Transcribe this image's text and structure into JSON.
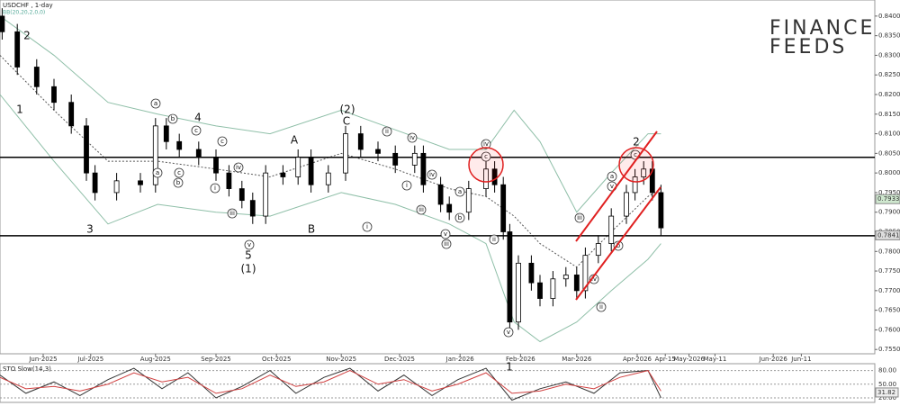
{
  "logo": {
    "line1": "FINANCE",
    "line2": "FEEDS"
  },
  "chart_data": {
    "type": "candlestick",
    "title": "USDCHF , 1-day",
    "indicator_label": "BB(20,20,2,0,0)",
    "up_color": "#ffffff",
    "down_color": "#000000",
    "wick_color": "#000000",
    "x": [
      1,
      8,
      17,
      25,
      33,
      40,
      44,
      54,
      65,
      72,
      77,
      83,
      92,
      100,
      106,
      112,
      117,
      123,
      131,
      138,
      144,
      152,
      160,
      167,
      175,
      183,
      192,
      196,
      204,
      208,
      217,
      225,
      229,
      233,
      236,
      240,
      246,
      250,
      256,
      262,
      267,
      271,
      277,
      283,
      290,
      294,
      298,
      302,
      306
    ],
    "open": [
      0.84,
      0.836,
      0.827,
      0.822,
      0.818,
      0.812,
      0.8,
      0.795,
      0.798,
      0.797,
      0.812,
      0.808,
      0.806,
      0.804,
      0.8,
      0.796,
      0.793,
      0.789,
      0.8,
      0.799,
      0.804,
      0.797,
      0.8,
      0.81,
      0.806,
      0.805,
      0.802,
      0.805,
      0.797,
      0.792,
      0.79,
      0.796,
      0.801,
      0.797,
      0.785,
      0.762,
      0.777,
      0.772,
      0.768,
      0.773,
      0.774,
      0.77,
      0.779,
      0.782,
      0.789,
      0.795,
      0.799,
      0.801,
      0.795
    ],
    "high": [
      0.842,
      0.838,
      0.829,
      0.824,
      0.82,
      0.814,
      0.802,
      0.8,
      0.8,
      0.814,
      0.814,
      0.81,
      0.808,
      0.806,
      0.802,
      0.798,
      0.795,
      0.802,
      0.802,
      0.806,
      0.806,
      0.802,
      0.812,
      0.812,
      0.808,
      0.807,
      0.807,
      0.807,
      0.799,
      0.794,
      0.798,
      0.803,
      0.803,
      0.799,
      0.787,
      0.779,
      0.779,
      0.774,
      0.775,
      0.776,
      0.776,
      0.781,
      0.784,
      0.791,
      0.797,
      0.801,
      0.803,
      0.803,
      0.797
    ],
    "low": [
      0.834,
      0.825,
      0.82,
      0.816,
      0.81,
      0.798,
      0.793,
      0.793,
      0.795,
      0.795,
      0.806,
      0.804,
      0.802,
      0.798,
      0.794,
      0.791,
      0.787,
      0.787,
      0.797,
      0.797,
      0.795,
      0.795,
      0.798,
      0.804,
      0.803,
      0.8,
      0.8,
      0.795,
      0.79,
      0.788,
      0.788,
      0.794,
      0.795,
      0.783,
      0.76,
      0.76,
      0.77,
      0.766,
      0.766,
      0.771,
      0.768,
      0.768,
      0.777,
      0.78,
      0.787,
      0.793,
      0.797,
      0.793,
      0.784
    ],
    "close": [
      0.836,
      0.827,
      0.822,
      0.818,
      0.812,
      0.8,
      0.795,
      0.798,
      0.797,
      0.812,
      0.808,
      0.806,
      0.804,
      0.8,
      0.796,
      0.793,
      0.789,
      0.8,
      0.799,
      0.804,
      0.797,
      0.8,
      0.81,
      0.806,
      0.805,
      0.802,
      0.805,
      0.797,
      0.792,
      0.79,
      0.796,
      0.801,
      0.797,
      0.785,
      0.762,
      0.777,
      0.772,
      0.768,
      0.773,
      0.774,
      0.77,
      0.779,
      0.782,
      0.789,
      0.795,
      0.799,
      0.801,
      0.795,
      0.786
    ],
    "bands": {
      "color": "#8fbfa8",
      "middle_color": "#555555",
      "x": [
        0,
        25,
        50,
        73,
        100,
        125,
        158,
        183,
        208,
        225,
        238,
        250,
        267,
        283,
        300,
        306
      ],
      "upper": [
        0.84,
        0.83,
        0.818,
        0.815,
        0.812,
        0.81,
        0.816,
        0.811,
        0.806,
        0.806,
        0.816,
        0.808,
        0.79,
        0.8,
        0.81,
        0.81
      ],
      "middle": [
        0.83,
        0.816,
        0.803,
        0.803,
        0.801,
        0.799,
        0.805,
        0.801,
        0.796,
        0.794,
        0.789,
        0.782,
        0.776,
        0.785,
        0.794,
        0.796
      ],
      "lower": [
        0.82,
        0.803,
        0.787,
        0.792,
        0.79,
        0.789,
        0.795,
        0.792,
        0.787,
        0.782,
        0.762,
        0.757,
        0.762,
        0.77,
        0.778,
        0.782
      ]
    },
    "levels": [
      0.804,
      0.784
    ],
    "price_labels": [
      {
        "value": 0.79333,
        "label": "0.79333"
      },
      {
        "value": 0.78411,
        "label": "0.78411"
      }
    ],
    "xlim": [
      0,
      405
    ],
    "ylim": [
      0.7539,
      0.8441
    ],
    "yticks": [
      {
        "value": 0.755,
        "label": "0.75500"
      },
      {
        "value": 0.76,
        "label": "0.76000"
      },
      {
        "value": 0.765,
        "label": "0.76500"
      },
      {
        "value": 0.77,
        "label": "0.77000"
      },
      {
        "value": 0.775,
        "label": "0.77500"
      },
      {
        "value": 0.78,
        "label": "0.78000"
      },
      {
        "value": 0.785,
        "label": "0.78500"
      },
      {
        "value": 0.79,
        "label": "0.79000"
      },
      {
        "value": 0.795,
        "label": "0.79500"
      },
      {
        "value": 0.8,
        "label": "0.80000"
      },
      {
        "value": 0.805,
        "label": "0.80500"
      },
      {
        "value": 0.81,
        "label": "0.81000"
      },
      {
        "value": 0.815,
        "label": "0.81500"
      },
      {
        "value": 0.82,
        "label": "0.82000"
      },
      {
        "value": 0.825,
        "label": "0.82500"
      },
      {
        "value": 0.83,
        "label": "0.83000"
      },
      {
        "value": 0.835,
        "label": "0.83500"
      },
      {
        "value": 0.84,
        "label": "0.84000"
      }
    ],
    "xticks": [
      {
        "value": 20,
        "label": "Jun-2025"
      },
      {
        "value": 42,
        "label": "Jul-2025"
      },
      {
        "value": 72,
        "label": "Aug-2025"
      },
      {
        "value": 100,
        "label": "Sep-2025"
      },
      {
        "value": 128,
        "label": "Oct-2025"
      },
      {
        "value": 158,
        "label": "Nov-2025"
      },
      {
        "value": 185,
        "label": "Dec-2025"
      },
      {
        "value": 213,
        "label": "Jan-2026"
      },
      {
        "value": 241,
        "label": "Feb-2026"
      },
      {
        "value": 267,
        "label": "Mar-2026"
      },
      {
        "value": 295,
        "label": "Apr-2026"
      },
      {
        "value": 308,
        "label": "Apr-15"
      },
      {
        "value": 319,
        "label": "May-2026"
      },
      {
        "value": 331,
        "label": "May-11"
      },
      {
        "value": 358,
        "label": "Jun-2026"
      },
      {
        "value": 371,
        "label": "Jun-11"
      }
    ],
    "annotations": [
      "2",
      "1",
      "3",
      "5",
      "(1)",
      "A",
      "B",
      "C",
      "(2)",
      "2",
      "1",
      "4",
      "a",
      "b",
      "c",
      "a",
      "c",
      "b",
      "iv",
      "i",
      "iii",
      "v",
      "c",
      "ii",
      "iv",
      "i",
      "iv",
      "iii",
      "i",
      "v",
      "iii",
      "b",
      "a",
      "iv",
      "c",
      "ii",
      "v",
      "iii",
      "iv",
      "ii",
      "a",
      "v",
      "b",
      "c"
    ],
    "stochastic": {
      "title": "STO Slow(14,3)",
      "k_color": "#333333",
      "d_color": "#d04040",
      "x": [
        0,
        12,
        25,
        37,
        50,
        62,
        75,
        87,
        100,
        112,
        125,
        137,
        150,
        162,
        175,
        187,
        200,
        212,
        225,
        237,
        250,
        262,
        275,
        287,
        300,
        306
      ],
      "k": [
        70,
        30,
        55,
        25,
        60,
        85,
        40,
        75,
        20,
        45,
        80,
        30,
        65,
        85,
        35,
        70,
        25,
        60,
        85,
        15,
        40,
        55,
        30,
        75,
        80,
        20
      ],
      "d": [
        65,
        40,
        45,
        35,
        50,
        75,
        55,
        65,
        30,
        40,
        70,
        45,
        55,
        80,
        50,
        60,
        35,
        50,
        75,
        30,
        35,
        50,
        40,
        65,
        80,
        35
      ],
      "ylim": [
        10,
        95
      ],
      "yticks": [
        {
          "value": 80,
          "label": "80.00"
        },
        {
          "value": 50,
          "label": "50.00"
        },
        {
          "value": 20,
          "label": "20.00"
        }
      ],
      "current": {
        "value": 31.82,
        "label": "31.82"
      }
    }
  }
}
